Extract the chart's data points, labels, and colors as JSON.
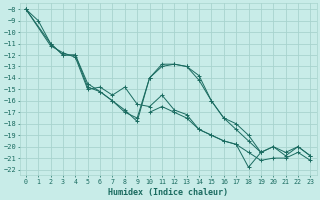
{
  "xlabel": "Humidex (Indice chaleur)",
  "background_color": "#c8ece8",
  "grid_color": "#a8d4ce",
  "line_color": "#1a6b60",
  "xlim": [
    -0.5,
    23.5
  ],
  "ylim": [
    -22.5,
    -7.5
  ],
  "xticks": [
    0,
    1,
    2,
    3,
    4,
    5,
    6,
    7,
    8,
    9,
    10,
    11,
    12,
    13,
    14,
    15,
    16,
    17,
    18,
    19,
    20,
    21,
    22,
    23
  ],
  "yticks": [
    -8,
    -9,
    -10,
    -11,
    -12,
    -13,
    -14,
    -15,
    -16,
    -17,
    -18,
    -19,
    -20,
    -21,
    -22
  ],
  "series": [
    [
      -8.0,
      -9.0,
      -11.0,
      -12.0,
      -12.0,
      -14.5,
      -15.2,
      -16.0,
      -17.0,
      -17.5,
      -14.0,
      -12.8,
      -12.8,
      -13.0,
      -13.8,
      -16.0,
      -17.5,
      -18.0,
      -19.0,
      -20.5,
      -20.0,
      -20.5,
      -20.0,
      -20.8
    ],
    [
      -8.0,
      null,
      -11.2,
      -11.8,
      -12.2,
      -15.0,
      -14.8,
      -15.5,
      -14.8,
      -16.3,
      -16.5,
      -15.5,
      -16.8,
      -17.2,
      -18.5,
      -19.0,
      -19.5,
      -19.8,
      -20.5,
      -21.2,
      -21.0,
      -21.0,
      -20.5,
      -21.2
    ],
    [
      -8.0,
      null,
      -11.0,
      -12.0,
      -12.0,
      -14.8,
      -15.2,
      -16.0,
      -16.8,
      -17.8,
      -14.0,
      -13.0,
      -12.8,
      -13.0,
      -14.2,
      -16.0,
      -17.5,
      -18.5,
      -19.5,
      -20.5,
      -20.0,
      -20.8,
      -20.0,
      -20.8
    ],
    [
      null,
      null,
      null,
      null,
      null,
      null,
      null,
      null,
      null,
      null,
      -17.0,
      -16.5,
      -17.0,
      -17.5,
      -18.5,
      -19.0,
      -19.5,
      -19.8,
      -21.8,
      -20.5,
      null,
      null,
      null,
      null
    ]
  ]
}
